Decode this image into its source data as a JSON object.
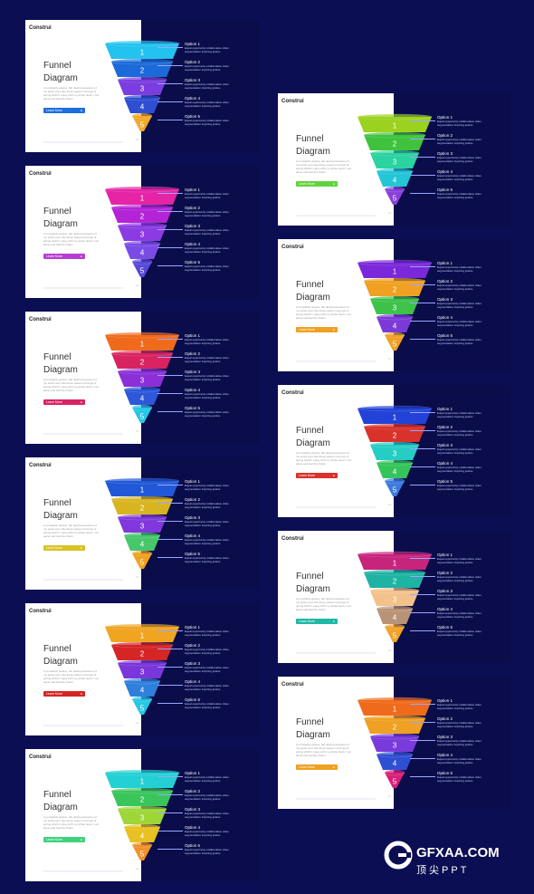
{
  "brand": "Construi",
  "title_line1": "Funnel",
  "title_line2": "Diagram",
  "description": "A constantly elusive, fair dealt possession of my entire soul, like these sweet mornings of spring which I enjoy with my whole heart. I am alone and feel the charm.",
  "button_label": "Learn More",
  "page_number": "12",
  "options": [
    {
      "label": "Option 1",
      "desc": "Equal opportunity collaborative cities segmentation inspiring justice."
    },
    {
      "label": "Option 2",
      "desc": "Equal opportunity collaborative cities segmentation inspiring justice."
    },
    {
      "label": "Option 3",
      "desc": "Equal opportunity collaborative cities segmentation inspiring justice."
    },
    {
      "label": "Option 4",
      "desc": "Equal opportunity collaborative cities segmentation inspiring justice."
    },
    {
      "label": "Option 5",
      "desc": "Equal opportunity collaborative cities segmentation inspiring justice."
    }
  ],
  "tier_numbers": [
    "1",
    "2",
    "3",
    "4",
    "5"
  ],
  "watermark": {
    "brand": "GFXAA.COM",
    "sub": "顶尖PPT"
  },
  "slides": [
    {
      "colors": [
        "#22c3ee",
        "#1c6ad9",
        "#7b3de0",
        "#2f4fd3",
        "#f0a92a"
      ],
      "button_color": "#1d6fe0"
    },
    {
      "colors": [
        "#e524a6",
        "#b324d6",
        "#8c3be4",
        "#7b4be8",
        "#5a48d8"
      ],
      "button_color": "#b63fd1"
    },
    {
      "colors": [
        "#f06a1b",
        "#d82360",
        "#8b2fd8",
        "#2d58d9",
        "#26c6e6"
      ],
      "button_color": "#d82362"
    },
    {
      "colors": [
        "#2158d8",
        "#d8b520",
        "#8038dc",
        "#47c76a",
        "#f2a11f"
      ],
      "button_color": "#d8c225"
    },
    {
      "colors": [
        "#f0a522",
        "#d52525",
        "#7a35db",
        "#2e80dc",
        "#27c6e3"
      ],
      "button_color": "#d42525"
    },
    {
      "colors": [
        "#23d0d4",
        "#39c55a",
        "#9ed638",
        "#e8c021",
        "#f0912a"
      ],
      "button_color": "#3fd27d"
    },
    {
      "colors": [
        "#9bd21f",
        "#3fc33d",
        "#2ad3a0",
        "#23c6d6",
        "#8a3fd9"
      ],
      "button_color": "#62d23b"
    },
    {
      "colors": [
        "#7a28d9",
        "#f0a022",
        "#3ec24a",
        "#7b3ad8",
        "#f0a128"
      ],
      "button_color": "#f0a022"
    },
    {
      "colors": [
        "#2242d8",
        "#d8322a",
        "#26cdc4",
        "#35c45a",
        "#3c7ae0"
      ],
      "button_color": "#d8322a"
    },
    {
      "colors": [
        "#c7247c",
        "#1fb3a3",
        "#f3c28b",
        "#b89378",
        "#f0a22a"
      ],
      "button_color": "#1fb8a5"
    },
    {
      "colors": [
        "#f06a1b",
        "#f0a022",
        "#7a3bdc",
        "#2f4fd3",
        "#d8207a"
      ],
      "button_color": "#f0a022"
    }
  ]
}
